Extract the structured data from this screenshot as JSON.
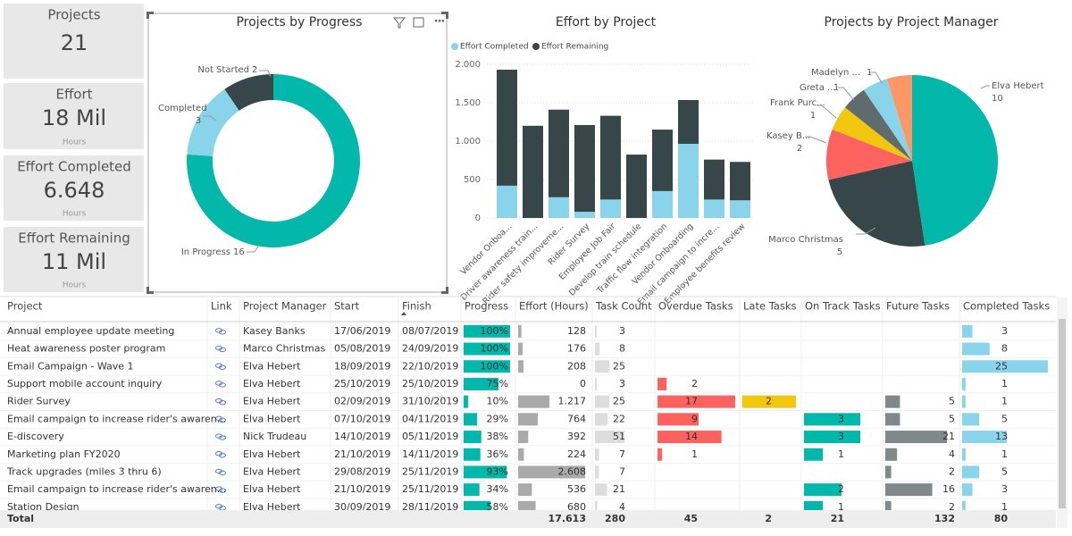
{
  "kpis": [
    {
      "label": "Projects",
      "value": "21"
    },
    {
      "label": "Effort",
      "value": "18 Mil",
      "unit": "Hours"
    },
    {
      "label": "Effort Completed",
      "value": "6.648",
      "unit": "Hours"
    },
    {
      "label": "Effort Remaining",
      "value": "11 Mil",
      "unit": "Hours"
    }
  ],
  "chart_data": [
    {
      "type": "donut",
      "title": "Projects by Progress",
      "categories": [
        "In Progress",
        "Completed",
        "Not Started"
      ],
      "values": [
        16,
        3,
        2
      ],
      "colors": [
        "#01b8aa",
        "#8ad4eb",
        "#374649"
      ]
    },
    {
      "type": "stacked-bar",
      "title": "Effort by Project",
      "categories": [
        "Vendor Onboa...",
        "Driver awareness train...",
        "Rider safety improveme...",
        "Rider Survey",
        "Employee Job Fair",
        "Develop train schedule",
        "Traffic flow integration",
        "Vendor Onboarding",
        "Email campaign to incre...",
        "Employee benefits review"
      ],
      "series": [
        {
          "name": "Effort Completed",
          "color": "#8ad4eb",
          "values": [
            420,
            0,
            270,
            80,
            240,
            0,
            350,
            965,
            240,
            230
          ]
        },
        {
          "name": "Effort Remaining",
          "color": "#374649",
          "values": [
            1510,
            1200,
            1140,
            1130,
            1090,
            825,
            800,
            570,
            520,
            500
          ]
        }
      ],
      "ylim": [
        0,
        2000
      ],
      "yticks": [
        0,
        500,
        {
          "value": 1000,
          "label": "1.000"
        },
        {
          "value": 1500,
          "label": "1.500"
        },
        {
          "value": 2000,
          "label": "2.000"
        }
      ],
      "grid": true,
      "legend": "top-left"
    },
    {
      "type": "pie",
      "title": "Projects by Project Manager",
      "categories": [
        "Elva Hebert",
        "Marco Christmas",
        "Kasey B...",
        "Frank Purc...",
        "Greta ...",
        "Madelyn ...",
        null
      ],
      "values": [
        10,
        5,
        2,
        1,
        1,
        1,
        1
      ],
      "colors": [
        "#01b8aa",
        "#374649",
        "#fd625e",
        "#f2c80f",
        "#5f6b6d",
        "#8ad4eb",
        "#fe9666"
      ]
    }
  ],
  "table": {
    "columns": [
      "Project",
      "Link",
      "Project Manager",
      "Start",
      "Finish",
      "Progress",
      "Effort (Hours)",
      "Task Count",
      "Overdue Tasks",
      "Late Tasks",
      "On Track Tasks",
      "Future Tasks",
      "Completed Tasks"
    ],
    "rows": [
      [
        "Annual employee update meeting",
        "Kasey Banks",
        "17/06/2019",
        "08/07/2019",
        "100%",
        "128",
        "3",
        null,
        null,
        null,
        null,
        "3"
      ],
      [
        "Heat awareness poster program",
        "Marco Christmas",
        "05/08/2019",
        "24/09/2019",
        "100%",
        "176",
        "8",
        null,
        null,
        null,
        null,
        "8"
      ],
      [
        "Email Campaign - Wave 1",
        "Elva Hebert",
        "18/09/2019",
        "22/10/2019",
        "100%",
        "208",
        "25",
        null,
        null,
        null,
        null,
        "25"
      ],
      [
        "Support mobile account inquiry",
        "Elva Hebert",
        "25/10/2019",
        "25/10/2019",
        "75%",
        "0",
        "3",
        "2",
        null,
        null,
        null,
        "1"
      ],
      [
        "Rider Survey",
        "Elva Hebert",
        "02/09/2019",
        "31/10/2019",
        "10%",
        "1.217",
        "25",
        "17",
        "2",
        null,
        "5",
        "1"
      ],
      [
        "Email campaign to increase rider's awaren...",
        "Elva Hebert",
        "07/10/2019",
        "04/11/2019",
        "29%",
        "764",
        "22",
        "9",
        null,
        "3",
        "5",
        "5"
      ],
      [
        "E-discovery",
        "Nick Trudeau",
        "14/10/2019",
        "05/11/2019",
        "38%",
        "392",
        "51",
        "14",
        null,
        "3",
        "21",
        "13"
      ],
      [
        "Marketing plan FY2020",
        "Elva Hebert",
        "21/10/2019",
        "14/11/2019",
        "36%",
        "224",
        "7",
        "1",
        null,
        "1",
        "4",
        "1"
      ],
      [
        "Track upgrades (miles 3 thru 6)",
        "Elva Hebert",
        "29/08/2019",
        "25/11/2019",
        "93%",
        "2.608",
        "7",
        null,
        null,
        null,
        "2",
        "5"
      ],
      [
        "Email campaign to increase rider's awaren...",
        "Elva Hebert",
        "21/10/2019",
        "25/11/2019",
        "34%",
        "536",
        "21",
        null,
        null,
        "2",
        "16",
        "3"
      ],
      [
        "Station Design",
        "Elva Hebert",
        "30/09/2019",
        "28/11/2019",
        "58%",
        "680",
        "4",
        null,
        null,
        "1",
        "2",
        "1"
      ]
    ],
    "total": [
      "Total",
      null,
      null,
      null,
      null,
      "17.613",
      "280",
      "45",
      "2",
      "21",
      "132",
      "80"
    ]
  }
}
